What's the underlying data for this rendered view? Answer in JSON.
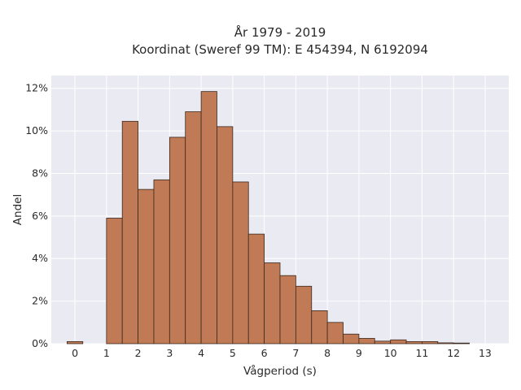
{
  "chart_data": {
    "type": "bar",
    "title_line1": "År 1979 - 2019",
    "title_line2": "Koordinat (Sweref 99 TM): E 454394, N 6192094",
    "xlabel": "Vågperiod (s)",
    "ylabel": "Andel",
    "xlim": [
      -0.75,
      13.75
    ],
    "ylim": [
      0,
      12.6
    ],
    "xticks": [
      0,
      1,
      2,
      3,
      4,
      5,
      6,
      7,
      8,
      9,
      10,
      11,
      12,
      13
    ],
    "yticks": [
      0,
      2,
      4,
      6,
      8,
      10,
      12
    ],
    "ytick_suffix": "%",
    "grid": true,
    "bin_width": 0.5,
    "bin_starts": [
      -0.25,
      1.0,
      1.5,
      2.0,
      2.5,
      3.0,
      3.5,
      4.0,
      4.5,
      5.0,
      5.5,
      6.0,
      6.5,
      7.0,
      7.5,
      8.0,
      8.5,
      9.0,
      9.5,
      10.0,
      10.5,
      11.0,
      11.5,
      12.0
    ],
    "values": [
      0.1,
      5.9,
      10.45,
      7.25,
      7.7,
      9.7,
      10.9,
      11.85,
      10.2,
      7.6,
      5.15,
      3.8,
      3.2,
      2.7,
      1.55,
      1.0,
      0.45,
      0.25,
      0.12,
      0.18,
      0.1,
      0.1,
      0.04,
      0.03
    ]
  },
  "colors": {
    "bar_fill": "#C07A55",
    "bar_edge": "#3a2a20",
    "plot_bg": "#EAEAF2",
    "grid": "#ffffff",
    "text": "#2a2a2a"
  }
}
